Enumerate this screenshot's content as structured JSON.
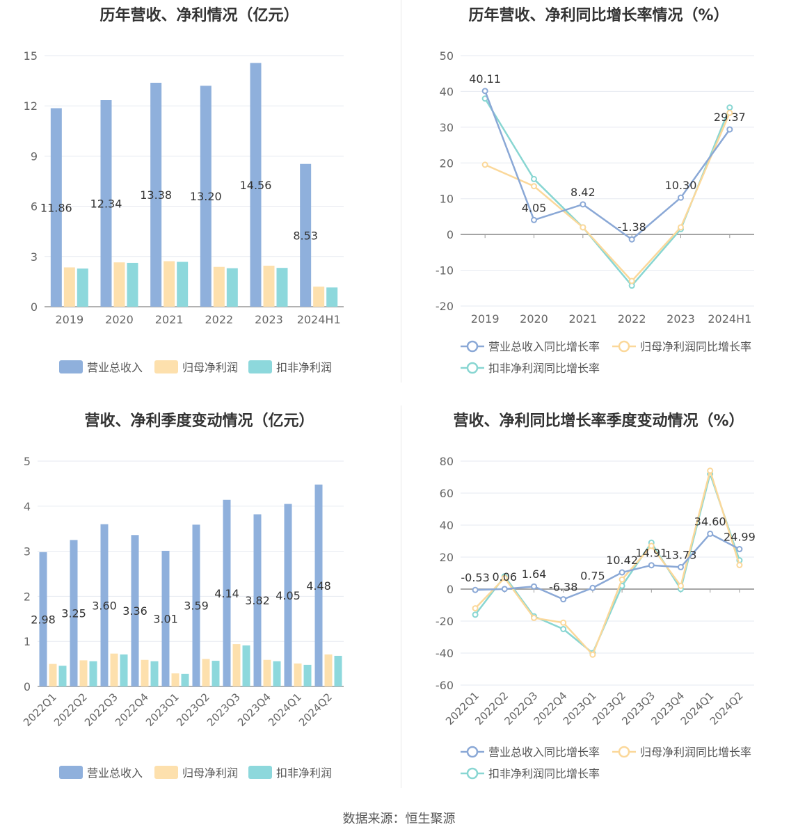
{
  "footer": "数据来源：恒生聚源",
  "colors": {
    "revenue": "#8fb0dc",
    "net_profit": "#fde0ad",
    "deducted_profit": "#8dd8dc",
    "revenue_line": "#8aa8d6",
    "net_line": "#fbd89a",
    "deducted_line": "#88d6d2",
    "grid": "#e6e9f0",
    "axis_text": "#666666"
  },
  "chart_data": [
    {
      "type": "bar",
      "title": "历年营收、净利情况（亿元）",
      "categories": [
        "2019",
        "2020",
        "2021",
        "2022",
        "2023",
        "2024H1"
      ],
      "ylim": [
        0,
        15
      ],
      "yticks": [
        0,
        3,
        6,
        9,
        12,
        15
      ],
      "grid": true,
      "legend_position": "bottom",
      "series": [
        {
          "name": "营业总收入",
          "values": [
            11.86,
            12.34,
            13.38,
            13.2,
            14.56,
            8.53
          ],
          "labels": [
            "11.86",
            "12.34",
            "13.38",
            "13.20",
            "14.56",
            "8.53"
          ]
        },
        {
          "name": "归母净利润",
          "values": [
            2.35,
            2.65,
            2.72,
            2.38,
            2.45,
            1.2
          ]
        },
        {
          "name": "扣非净利润",
          "values": [
            2.28,
            2.62,
            2.68,
            2.3,
            2.32,
            1.15
          ]
        }
      ]
    },
    {
      "type": "line",
      "title": "历年营收、净利同比增长率情况（%）",
      "categories": [
        "2019",
        "2020",
        "2021",
        "2022",
        "2023",
        "2024H1"
      ],
      "ylim": [
        -20,
        50
      ],
      "yticks": [
        -20,
        -10,
        0,
        10,
        20,
        30,
        40,
        50
      ],
      "grid": true,
      "legend_position": "bottom",
      "series": [
        {
          "name": "营业总收入同比增长率",
          "values": [
            40.11,
            4.05,
            8.42,
            -1.38,
            10.3,
            29.37
          ],
          "labels": [
            "40.11",
            "4.05",
            "8.42",
            "-1.38",
            "10.30",
            "29.37"
          ]
        },
        {
          "name": "归母净利润同比增长率",
          "values": [
            19.5,
            13.5,
            2.0,
            -13.0,
            2.0,
            34.0
          ]
        },
        {
          "name": "扣非净利润同比增长率",
          "values": [
            38.0,
            15.5,
            2.0,
            -14.3,
            1.5,
            35.5
          ]
        }
      ]
    },
    {
      "type": "bar",
      "title": "营收、净利季度变动情况（亿元）",
      "categories": [
        "2022Q1",
        "2022Q2",
        "2022Q3",
        "2022Q4",
        "2023Q1",
        "2023Q2",
        "2023Q3",
        "2023Q4",
        "2024Q1",
        "2024Q2"
      ],
      "ylim": [
        0,
        5
      ],
      "yticks": [
        0,
        1,
        2,
        3,
        4,
        5
      ],
      "grid": true,
      "legend_position": "bottom",
      "series": [
        {
          "name": "营业总收入",
          "values": [
            2.98,
            3.25,
            3.6,
            3.36,
            3.01,
            3.59,
            4.14,
            3.82,
            4.05,
            4.48
          ],
          "labels": [
            "2.98",
            "3.25",
            "3.60",
            "3.36",
            "3.01",
            "3.59",
            "4.14",
            "3.82",
            "4.05",
            "4.48"
          ]
        },
        {
          "name": "归母净利润",
          "values": [
            0.5,
            0.58,
            0.73,
            0.59,
            0.29,
            0.61,
            0.94,
            0.59,
            0.51,
            0.71
          ]
        },
        {
          "name": "扣非净利润",
          "values": [
            0.46,
            0.56,
            0.71,
            0.56,
            0.28,
            0.57,
            0.91,
            0.56,
            0.48,
            0.68
          ]
        }
      ]
    },
    {
      "type": "line",
      "title": "营收、净利同比增长率季度变动情况（%）",
      "categories": [
        "2022Q1",
        "2022Q2",
        "2022Q3",
        "2022Q4",
        "2023Q1",
        "2023Q2",
        "2023Q3",
        "2023Q4",
        "2024Q1",
        "2024Q2"
      ],
      "ylim": [
        -60,
        80
      ],
      "yticks": [
        -60,
        -40,
        -20,
        0,
        20,
        40,
        60,
        80
      ],
      "grid": true,
      "legend_position": "bottom",
      "series": [
        {
          "name": "营业总收入同比增长率",
          "values": [
            -0.53,
            0.06,
            1.64,
            -6.38,
            0.75,
            10.42,
            14.91,
            13.73,
            34.6,
            24.99
          ],
          "labels": [
            "-0.53",
            "0.06",
            "1.64",
            "-6.38",
            "0.75",
            "10.42",
            "14.91",
            "13.73",
            "34.60",
            "24.99"
          ]
        },
        {
          "name": "归母净利润同比增长率",
          "values": [
            -12,
            7,
            -18,
            -21,
            -41,
            6,
            27,
            2,
            74,
            15
          ]
        },
        {
          "name": "扣非净利润同比增长率",
          "values": [
            -16,
            8,
            -17,
            -25,
            -40,
            2,
            29,
            0,
            72,
            18
          ]
        }
      ]
    }
  ]
}
